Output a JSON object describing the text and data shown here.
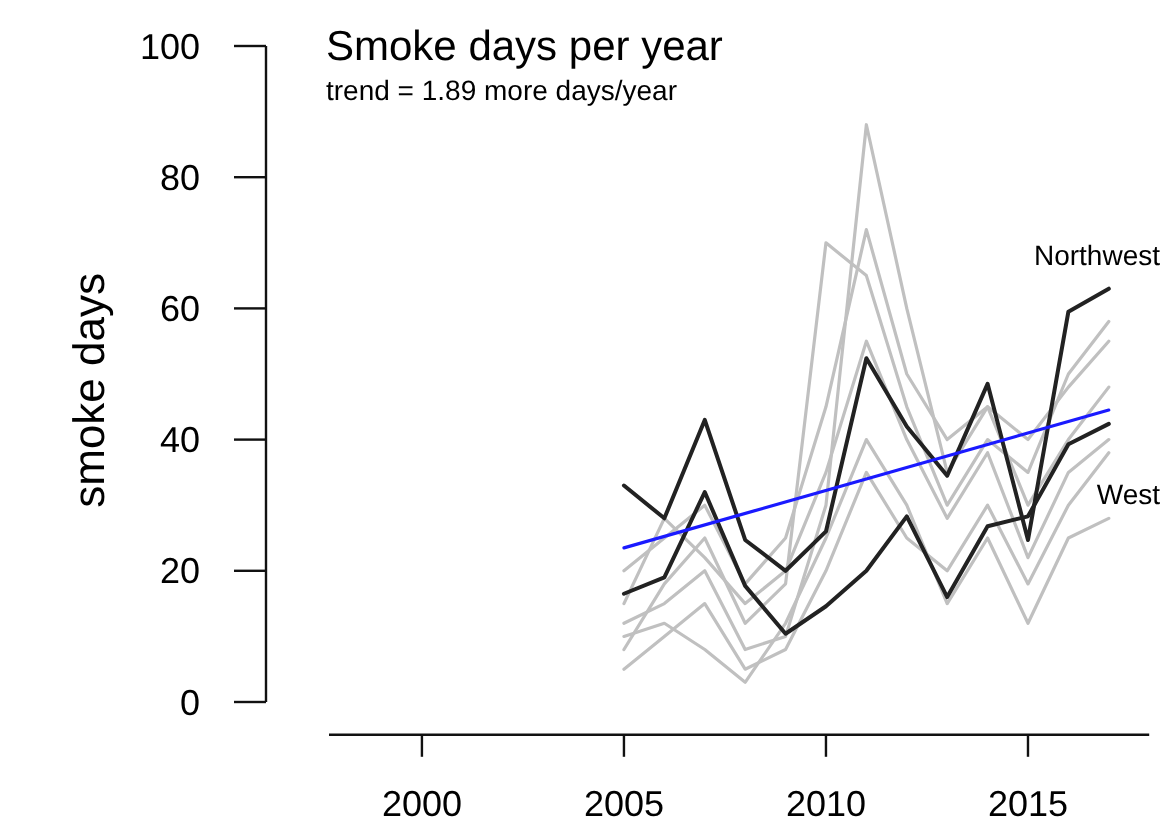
{
  "chart_data": {
    "type": "line",
    "title": "Smoke days per year",
    "subtitle": "trend = 1.89 more days/year",
    "ylabel": "smoke days",
    "x": [
      2005,
      2006,
      2007,
      2008,
      2009,
      2010,
      2011,
      2012,
      2013,
      2014,
      2015,
      2016,
      2017
    ],
    "xlim": [
      1997.7,
      2018
    ],
    "xticks": [
      2000,
      2005,
      2010,
      2015
    ],
    "ylim": [
      -5,
      100
    ],
    "yticks": [
      0,
      20,
      40,
      60,
      80,
      100
    ],
    "series": [
      {
        "color": "#c0c0c0",
        "values": [
          12,
          15,
          20,
          8,
          10,
          30,
          88,
          60,
          35,
          45,
          40,
          48,
          55
        ]
      },
      {
        "color": "#c0c0c0",
        "values": [
          8,
          18,
          25,
          12,
          18,
          70,
          65,
          45,
          30,
          40,
          35,
          50,
          58
        ]
      },
      {
        "color": "#c0c0c0",
        "values": [
          20,
          25,
          30,
          18,
          25,
          45,
          72,
          50,
          40,
          45,
          30,
          40,
          48
        ]
      },
      {
        "color": "#c0c0c0",
        "values": [
          5,
          10,
          15,
          5,
          8,
          20,
          35,
          25,
          20,
          30,
          18,
          30,
          38
        ]
      },
      {
        "color": "#c0c0c0",
        "values": [
          10,
          12,
          8,
          3,
          12,
          25,
          40,
          30,
          15,
          25,
          12,
          25,
          28
        ]
      },
      {
        "color": "#c0c0c0",
        "values": [
          15,
          28,
          22,
          15,
          20,
          35,
          55,
          40,
          28,
          38,
          22,
          35,
          40
        ]
      },
      {
        "name": "Northwest",
        "color": "#222222",
        "values": [
          33,
          28,
          43,
          24.7,
          20,
          26,
          52.4,
          42,
          34.5,
          48.5,
          24.7,
          59.5,
          63
        ]
      },
      {
        "name": "West",
        "color": "#222222",
        "values": [
          16.5,
          19,
          32,
          17.7,
          10.4,
          14.6,
          20,
          28.3,
          16,
          26.8,
          28.3,
          39.3,
          42.4
        ]
      },
      {
        "type": "line",
        "color": "#1a1aff",
        "x": [
          2005,
          2017
        ],
        "values": [
          23.5,
          44.5
        ]
      }
    ],
    "grid": false,
    "marker": "none",
    "line_style": "solid"
  }
}
